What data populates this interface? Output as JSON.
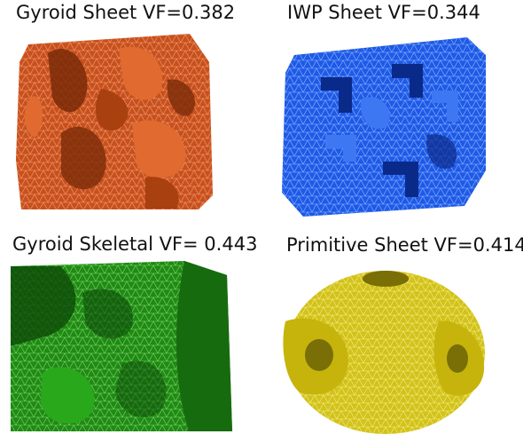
{
  "panels": [
    {
      "label": "Gyroid Sheet VF=0.382",
      "color": "#c8501e",
      "mesh": "#f0a070",
      "dark": "#7a2a08"
    },
    {
      "label": "IWP Sheet VF=0.344",
      "color": "#1e5ae6",
      "mesh": "#8fb4ff",
      "dark": "#0a2a8a"
    },
    {
      "label": "Gyroid Skeletal VF= 0.443",
      "color": "#1f8a14",
      "mesh": "#7fd46a",
      "dark": "#0c4a08"
    },
    {
      "label": "Primitive Sheet VF=0.414",
      "color": "#d2c21a",
      "mesh": "#f6ee8a",
      "dark": "#7a6e06"
    }
  ]
}
